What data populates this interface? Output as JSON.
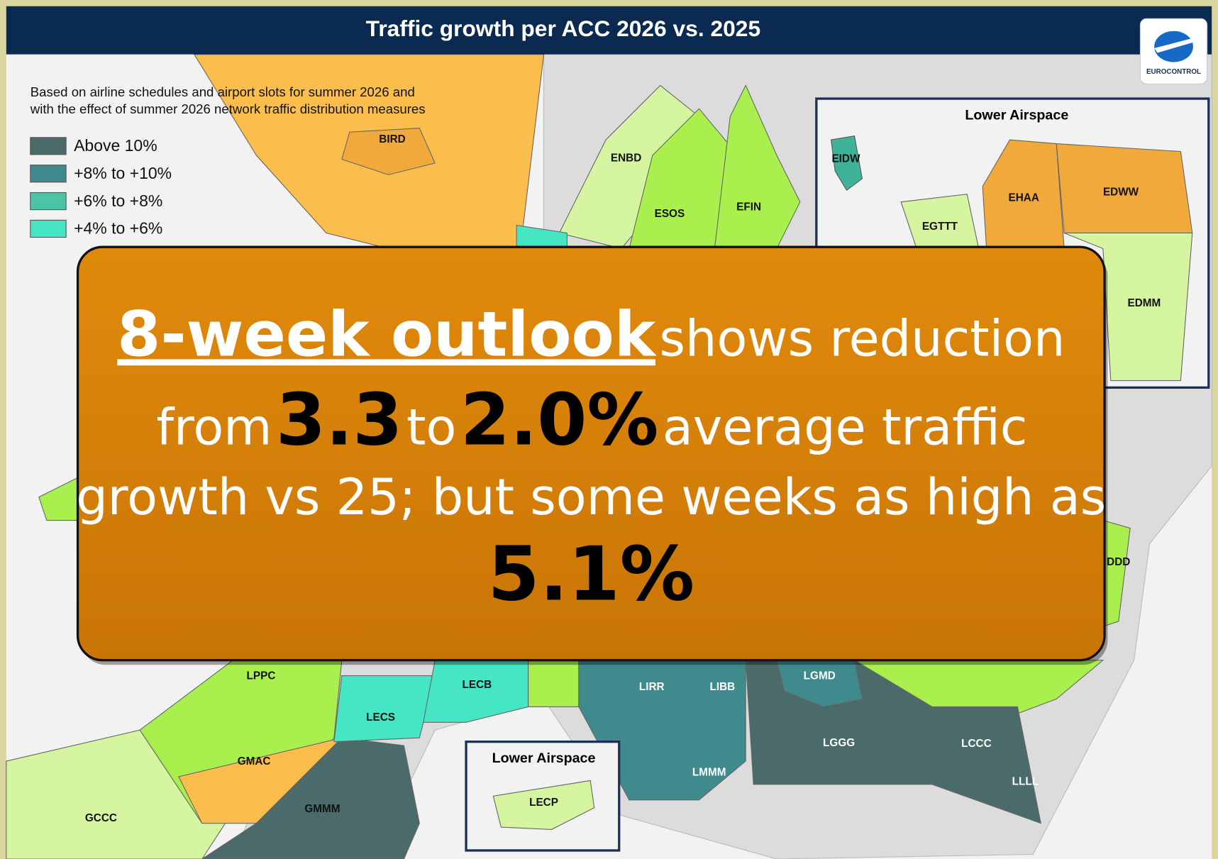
{
  "header": {
    "title": "Traffic growth per ACC 2026 vs. 2025",
    "logo": "EUROCONTROL"
  },
  "subtitle": [
    "Based on airline schedules and airport slots for summer 2026 and",
    "with the effect of summer 2026 network traffic distribution measures"
  ],
  "legend": [
    {
      "label": "Above 10%",
      "color": "#4b6b6b"
    },
    {
      "label": "+8% to +10%",
      "color": "#3f8a8c"
    },
    {
      "label": "+6% to +8%",
      "color": "#4cc4a4"
    },
    {
      "label": "+4% to +6%",
      "color": "#45e6c4"
    }
  ],
  "regions": [
    "BIRD",
    "ENBD",
    "ESOS",
    "EFIN",
    "LPPC",
    "LECB",
    "LECS",
    "GMAC",
    "GMMM",
    "GCCC",
    "LIRR",
    "LIBB",
    "LGMD",
    "LGGG",
    "LCCC",
    "LMMM",
    "LLLL",
    "DDD"
  ],
  "insets": [
    {
      "title": "Lower Airspace",
      "regions": [
        "EIDW",
        "EHAA",
        "EDWW",
        "EGTTT",
        "EDMM"
      ]
    },
    {
      "title": "Lower Airspace",
      "regions": [
        "LECP"
      ]
    }
  ],
  "callout": {
    "highlight": "8-week outlook",
    "line1": "shows reduction",
    "from": "from",
    "value_from": "3.3",
    "to": "to",
    "value_to": "2.0%",
    "line2": "average traffic",
    "line3": "growth vs 25; but some weeks as high as",
    "value_peak": "5.1%"
  }
}
